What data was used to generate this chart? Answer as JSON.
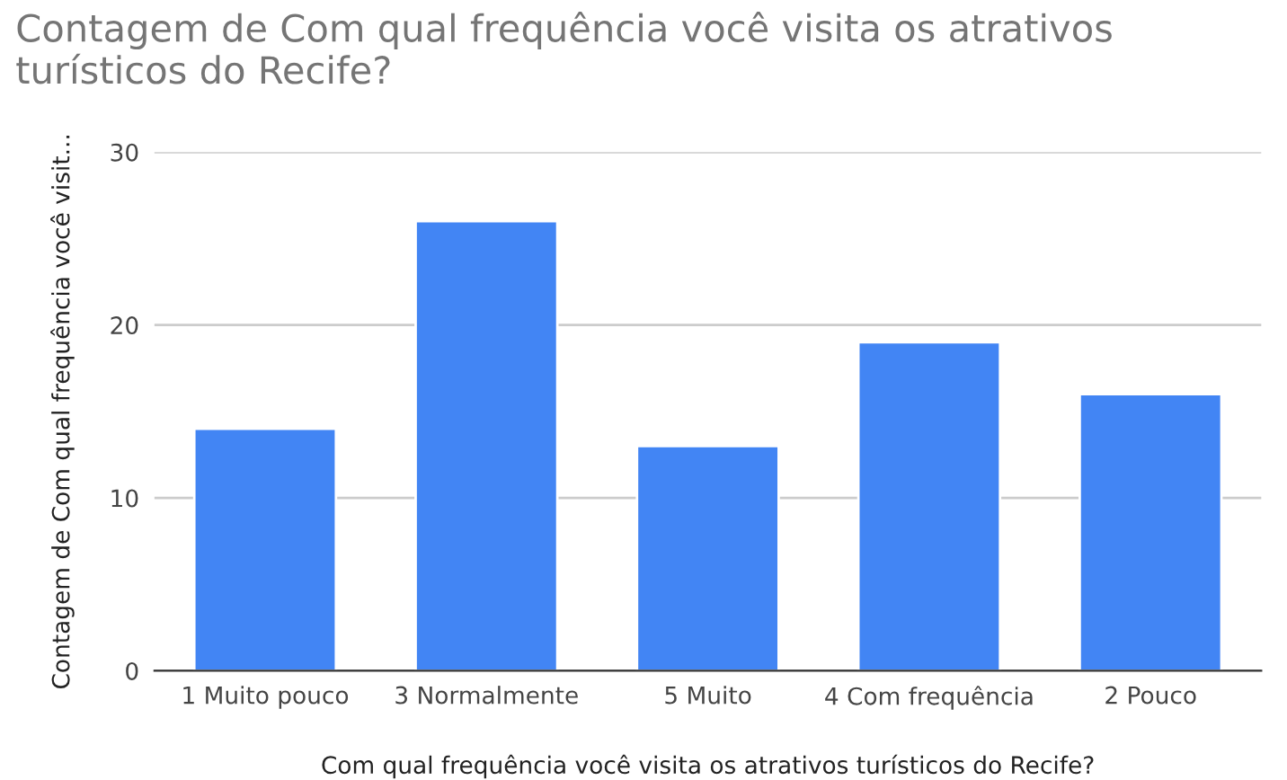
{
  "chart_data": {
    "type": "bar",
    "title": "Contagem de Com qual frequência você visita os atrativos turísticos do Recife?",
    "xlabel": "Com qual frequência você visita os atrativos turísticos do Recife?",
    "ylabel": "Contagem de Com qual frequência você visit...",
    "categories": [
      "1 Muito pouco",
      "3 Normalmente",
      "5 Muito",
      "4 Com frequência",
      "2 Pouco"
    ],
    "values": [
      14,
      26,
      13,
      19,
      16
    ],
    "color": "#4285f4",
    "ylim": [
      0,
      30
    ],
    "yticks": [
      0,
      10,
      20,
      30
    ],
    "grid": "y",
    "legend": false
  }
}
